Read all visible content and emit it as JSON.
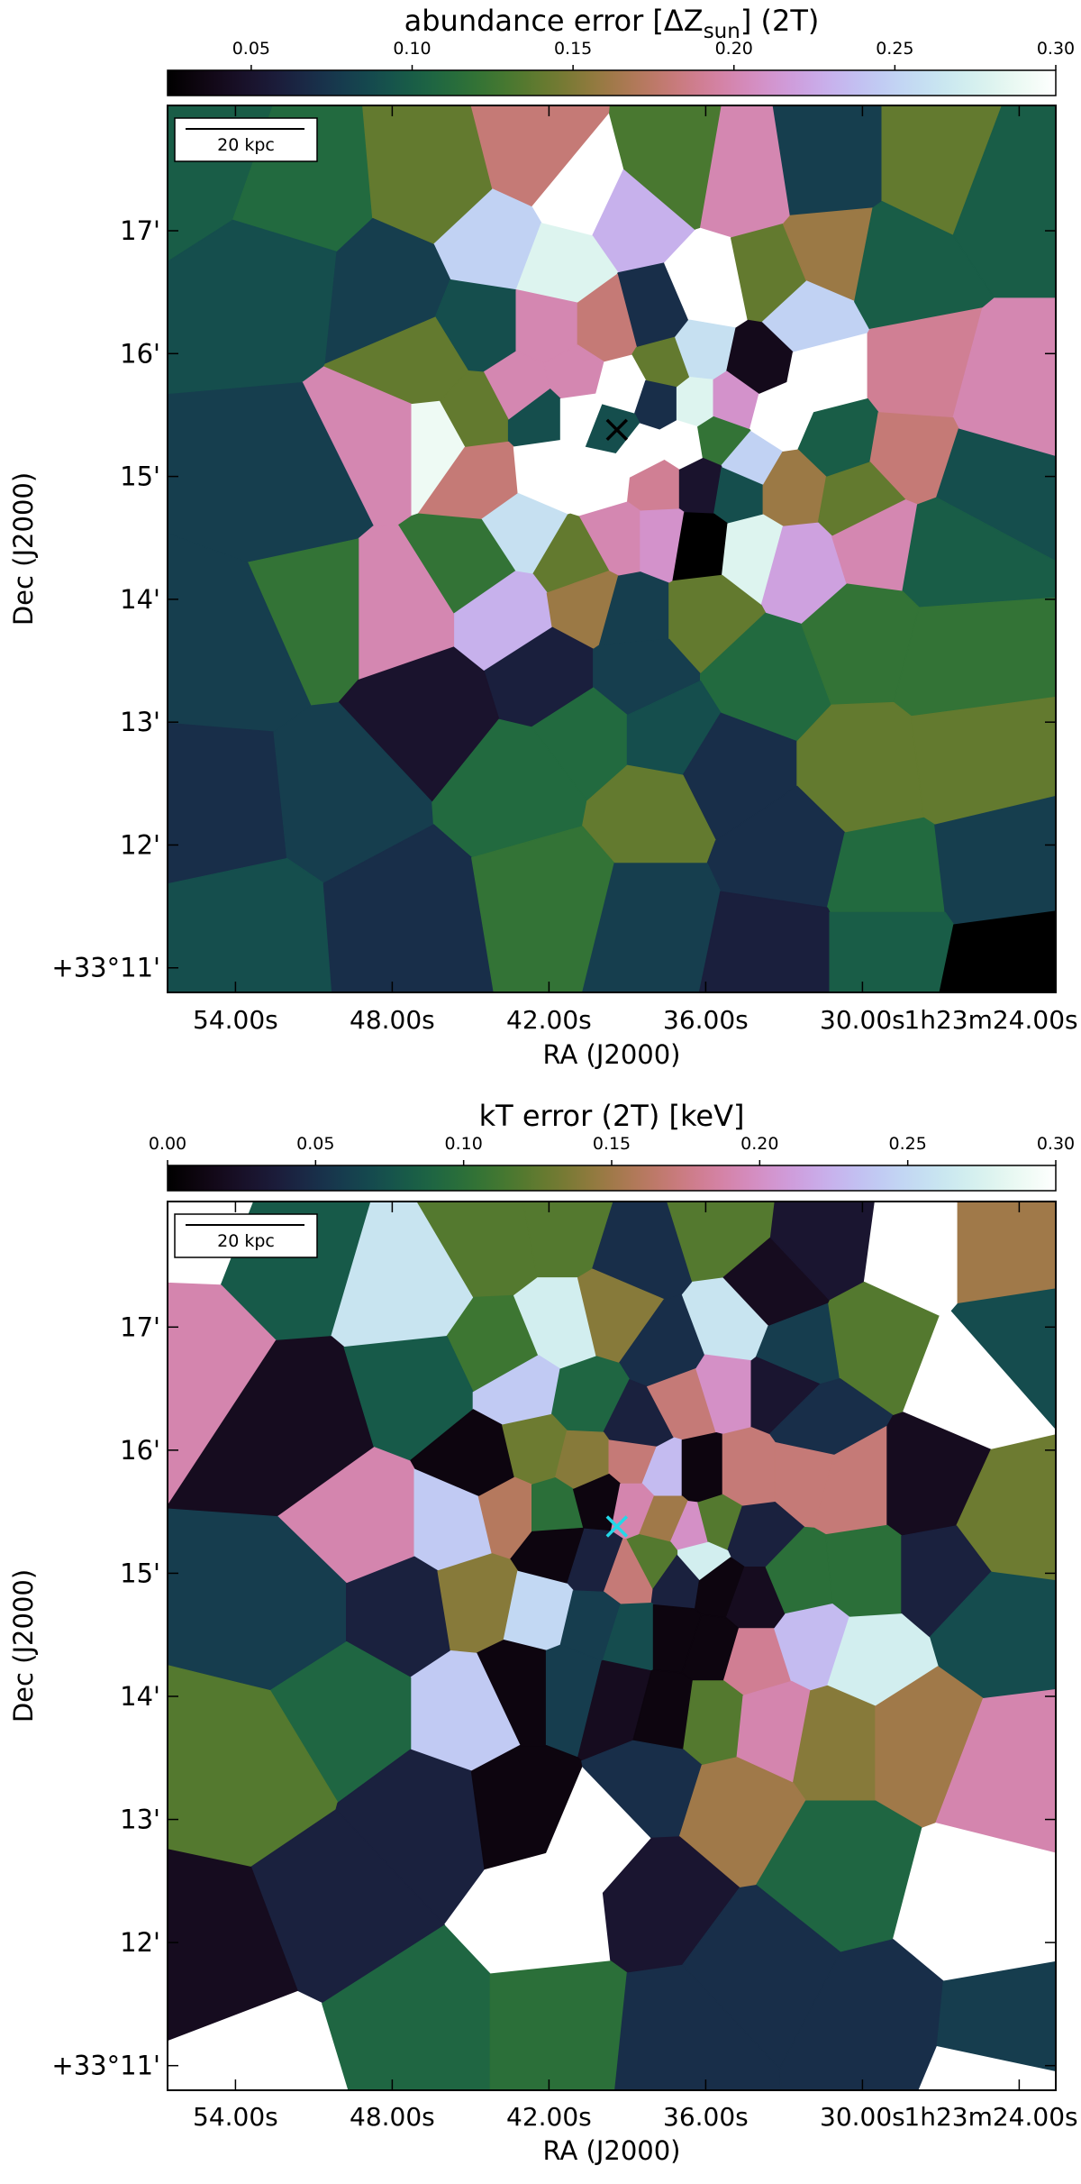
{
  "chart_data": [
    {
      "type": "heatmap",
      "title": "abundance error [ΔZsun] (2T)",
      "title_main": "abundance error [ΔZ",
      "title_sub": "sun",
      "title_tail": "] (2T)",
      "colormap": "cubehelix",
      "colorbar": {
        "ticks": [
          0.05,
          0.1,
          0.15,
          0.2,
          0.25,
          0.3
        ],
        "tick_labels": [
          "0.05",
          "0.10",
          "0.15",
          "0.20",
          "0.25",
          "0.30"
        ],
        "range": [
          0.024,
          0.3
        ]
      },
      "xlabel": "RA (J2000)",
      "ylabel": "Dec (J2000)",
      "x_tick_labels": [
        "54.00s",
        "48.00s",
        "42.00s",
        "36.00s",
        "30.00s",
        "1h23m24.00s"
      ],
      "y_tick_labels": [
        "+33°11'",
        "12'",
        "13'",
        "14'",
        "15'",
        "16'",
        "17'"
      ],
      "scalebar_label": "20 kpc",
      "marker": {
        "symbol": "×",
        "color": "#000000",
        "ra_s": 39.4,
        "dec_arcmin": 15.38
      },
      "bins": [
        {
          "ra": 55.5,
          "dec": 17.6,
          "v": 0.1
        },
        {
          "ra": 51.5,
          "dec": 17.3,
          "v": 0.11
        },
        {
          "ra": 46.2,
          "dec": 17.4,
          "v": 0.14
        },
        {
          "ra": 42.5,
          "dec": 17.6,
          "v": 0.18
        },
        {
          "ra": 40.8,
          "dec": 17.3,
          "v": 0.3
        },
        {
          "ra": 44.0,
          "dec": 16.9,
          "v": 0.25
        },
        {
          "ra": 38.8,
          "dec": 17.1,
          "v": 0.23
        },
        {
          "ra": 37.2,
          "dec": 17.5,
          "v": 0.13
        },
        {
          "ra": 34.5,
          "dec": 17.4,
          "v": 0.2
        },
        {
          "ra": 31.5,
          "dec": 17.5,
          "v": 0.08
        },
        {
          "ra": 27.0,
          "dec": 17.5,
          "v": 0.14
        },
        {
          "ra": 24.5,
          "dec": 17.3,
          "v": 0.1
        },
        {
          "ra": 41.5,
          "dec": 16.7,
          "v": 0.28
        },
        {
          "ra": 38.0,
          "dec": 16.3,
          "v": 0.07
        },
        {
          "ra": 35.8,
          "dec": 16.5,
          "v": 0.3
        },
        {
          "ra": 33.5,
          "dec": 16.6,
          "v": 0.14
        },
        {
          "ra": 31.2,
          "dec": 16.8,
          "v": 0.16
        },
        {
          "ra": 32.2,
          "dec": 16.3,
          "v": 0.25
        },
        {
          "ra": 28.8,
          "dec": 16.7,
          "v": 0.1
        },
        {
          "ra": 52.5,
          "dec": 16.6,
          "v": 0.09
        },
        {
          "ra": 48.0,
          "dec": 16.5,
          "v": 0.08
        },
        {
          "ra": 44.5,
          "dec": 16.2,
          "v": 0.09
        },
        {
          "ra": 42.0,
          "dec": 16.2,
          "v": 0.2
        },
        {
          "ra": 39.8,
          "dec": 16.2,
          "v": 0.18
        },
        {
          "ra": 37.5,
          "dec": 15.9,
          "v": 0.14
        },
        {
          "ra": 36.2,
          "dec": 16.0,
          "v": 0.26
        },
        {
          "ra": 34.0,
          "dec": 15.9,
          "v": 0.04
        },
        {
          "ra": 31.6,
          "dec": 15.8,
          "v": 0.3
        },
        {
          "ra": 28.0,
          "dec": 15.8,
          "v": 0.19
        },
        {
          "ra": 24.5,
          "dec": 15.6,
          "v": 0.2
        },
        {
          "ra": 46.8,
          "dec": 15.9,
          "v": 0.14
        },
        {
          "ra": 43.0,
          "dec": 15.7,
          "v": 0.2
        },
        {
          "ra": 41.0,
          "dec": 15.8,
          "v": 0.2
        },
        {
          "ra": 39.2,
          "dec": 15.7,
          "v": 0.3
        },
        {
          "ra": 37.8,
          "dec": 15.6,
          "v": 0.07
        },
        {
          "ra": 36.4,
          "dec": 15.6,
          "v": 0.28
        },
        {
          "ra": 35.0,
          "dec": 15.6,
          "v": 0.21
        },
        {
          "ra": 33.2,
          "dec": 15.5,
          "v": 0.3
        },
        {
          "ra": 44.8,
          "dec": 15.5,
          "v": 0.14
        },
        {
          "ra": 42.3,
          "dec": 15.5,
          "v": 0.09
        },
        {
          "ra": 40.8,
          "dec": 15.5,
          "v": 0.3
        },
        {
          "ra": 39.6,
          "dec": 15.4,
          "v": 0.09
        },
        {
          "ra": 38.4,
          "dec": 15.2,
          "v": 0.3
        },
        {
          "ra": 36.9,
          "dec": 15.25,
          "v": 0.3
        },
        {
          "ra": 35.5,
          "dec": 15.3,
          "v": 0.12
        },
        {
          "ra": 34.4,
          "dec": 15.1,
          "v": 0.25
        },
        {
          "ra": 31.0,
          "dec": 15.3,
          "v": 0.1
        },
        {
          "ra": 28.2,
          "dec": 15.2,
          "v": 0.18
        },
        {
          "ra": 25.3,
          "dec": 15.0,
          "v": 0.09
        },
        {
          "ra": 48.0,
          "dec": 15.3,
          "v": 0.2
        },
        {
          "ra": 46.5,
          "dec": 15.3,
          "v": 0.29
        },
        {
          "ra": 44.5,
          "dec": 15.0,
          "v": 0.18
        },
        {
          "ra": 42.0,
          "dec": 15.05,
          "v": 0.3
        },
        {
          "ra": 40.0,
          "dec": 15.0,
          "v": 0.3
        },
        {
          "ra": 37.8,
          "dec": 14.95,
          "v": 0.19
        },
        {
          "ra": 36.2,
          "dec": 14.95,
          "v": 0.05
        },
        {
          "ra": 34.8,
          "dec": 14.9,
          "v": 0.09
        },
        {
          "ra": 32.8,
          "dec": 14.9,
          "v": 0.16
        },
        {
          "ra": 30.2,
          "dec": 14.8,
          "v": 0.14
        },
        {
          "ra": 51.8,
          "dec": 14.9,
          "v": 0.08
        },
        {
          "ra": 43.0,
          "dec": 14.55,
          "v": 0.26
        },
        {
          "ra": 39.3,
          "dec": 14.5,
          "v": 0.2
        },
        {
          "ra": 37.7,
          "dec": 14.5,
          "v": 0.21
        },
        {
          "ra": 36.3,
          "dec": 14.45,
          "v": 0.02
        },
        {
          "ra": 34.2,
          "dec": 14.4,
          "v": 0.28
        },
        {
          "ra": 32.5,
          "dec": 14.3,
          "v": 0.22
        },
        {
          "ra": 29.5,
          "dec": 14.5,
          "v": 0.2
        },
        {
          "ra": 26.8,
          "dec": 14.4,
          "v": 0.1
        },
        {
          "ra": 44.8,
          "dec": 14.3,
          "v": 0.12
        },
        {
          "ra": 41.0,
          "dec": 14.3,
          "v": 0.14
        },
        {
          "ra": 43.5,
          "dec": 13.9,
          "v": 0.23
        },
        {
          "ra": 40.5,
          "dec": 14.0,
          "v": 0.16
        },
        {
          "ra": 38.8,
          "dec": 13.9,
          "v": 0.08
        },
        {
          "ra": 36.0,
          "dec": 13.9,
          "v": 0.14
        },
        {
          "ra": 47.8,
          "dec": 13.9,
          "v": 0.2
        },
        {
          "ra": 50.8,
          "dec": 13.9,
          "v": 0.12
        },
        {
          "ra": 54.0,
          "dec": 13.6,
          "v": 0.08
        },
        {
          "ra": 42.0,
          "dec": 13.4,
          "v": 0.06
        },
        {
          "ra": 38.6,
          "dec": 13.4,
          "v": 0.08
        },
        {
          "ra": 33.8,
          "dec": 13.4,
          "v": 0.11
        },
        {
          "ra": 30.0,
          "dec": 13.7,
          "v": 0.12
        },
        {
          "ra": 26.5,
          "dec": 13.5,
          "v": 0.12
        },
        {
          "ra": 46.5,
          "dec": 13.1,
          "v": 0.05
        },
        {
          "ra": 40.5,
          "dec": 12.9,
          "v": 0.11
        },
        {
          "ra": 37.5,
          "dec": 12.9,
          "v": 0.09
        },
        {
          "ra": 35.2,
          "dec": 12.6,
          "v": 0.07
        },
        {
          "ra": 29.8,
          "dec": 12.6,
          "v": 0.14
        },
        {
          "ra": 26.0,
          "dec": 12.7,
          "v": 0.14
        },
        {
          "ra": 54.5,
          "dec": 12.3,
          "v": 0.07
        },
        {
          "ra": 50.0,
          "dec": 12.4,
          "v": 0.08
        },
        {
          "ra": 43.0,
          "dec": 12.5,
          "v": 0.11
        },
        {
          "ra": 38.0,
          "dec": 12.3,
          "v": 0.14
        },
        {
          "ra": 33.0,
          "dec": 11.9,
          "v": 0.07
        },
        {
          "ra": 29.0,
          "dec": 11.7,
          "v": 0.11
        },
        {
          "ra": 25.0,
          "dec": 11.8,
          "v": 0.08
        },
        {
          "ra": 53.5,
          "dec": 11.3,
          "v": 0.09
        },
        {
          "ra": 47.5,
          "dec": 11.4,
          "v": 0.07
        },
        {
          "ra": 41.8,
          "dec": 11.6,
          "v": 0.12
        },
        {
          "ra": 38.0,
          "dec": 11.4,
          "v": 0.08
        },
        {
          "ra": 33.5,
          "dec": 11.2,
          "v": 0.06
        },
        {
          "ra": 29.0,
          "dec": 11.2,
          "v": 0.1
        },
        {
          "ra": 24.5,
          "dec": 11.0,
          "v": 0.02
        }
      ]
    },
    {
      "type": "heatmap",
      "title": "kT error (2T) [keV]",
      "colormap": "cubehelix",
      "colorbar": {
        "ticks": [
          0.0,
          0.05,
          0.1,
          0.15,
          0.2,
          0.25,
          0.3
        ],
        "tick_labels": [
          "0.00",
          "0.05",
          "0.10",
          "0.15",
          "0.20",
          "0.25",
          "0.30"
        ],
        "range": [
          0.0,
          0.3
        ]
      },
      "xlabel": "RA (J2000)",
      "ylabel": "Dec (J2000)",
      "x_tick_labels": [
        "54.00s",
        "48.00s",
        "42.00s",
        "36.00s",
        "30.00s",
        "1h23m24.00s"
      ],
      "y_tick_labels": [
        "+33°11'",
        "12'",
        "13'",
        "14'",
        "15'",
        "16'",
        "17'"
      ],
      "scalebar_label": "20 kpc",
      "marker": {
        "symbol": "×",
        "color": "#22d8e8",
        "ra_s": 39.4,
        "dec_arcmin": 15.38
      },
      "bins": [
        {
          "ra": 55.6,
          "dec": 17.9,
          "v": 0.3
        },
        {
          "ra": 52.0,
          "dec": 17.6,
          "v": 0.08
        },
        {
          "ra": 47.2,
          "dec": 17.3,
          "v": 0.26
        },
        {
          "ra": 44.0,
          "dec": 17.7,
          "v": 0.12
        },
        {
          "ra": 41.5,
          "dec": 17.8,
          "v": 0.12
        },
        {
          "ra": 38.5,
          "dec": 17.6,
          "v": 0.05
        },
        {
          "ra": 35.5,
          "dec": 17.8,
          "v": 0.12
        },
        {
          "ra": 33.5,
          "dec": 17.3,
          "v": 0.02
        },
        {
          "ra": 31.5,
          "dec": 17.7,
          "v": 0.03
        },
        {
          "ra": 28.0,
          "dec": 17.6,
          "v": 0.3
        },
        {
          "ra": 24.7,
          "dec": 17.6,
          "v": 0.15
        },
        {
          "ra": 55.8,
          "dec": 16.8,
          "v": 0.19
        },
        {
          "ra": 43.8,
          "dec": 16.8,
          "v": 0.11
        },
        {
          "ra": 41.5,
          "dec": 17.0,
          "v": 0.27
        },
        {
          "ra": 39.5,
          "dec": 17.1,
          "v": 0.14
        },
        {
          "ra": 37.5,
          "dec": 16.8,
          "v": 0.05
        },
        {
          "ra": 35.0,
          "dec": 17.0,
          "v": 0.26
        },
        {
          "ra": 32.6,
          "dec": 16.8,
          "v": 0.06
        },
        {
          "ra": 29.5,
          "dec": 16.9,
          "v": 0.12
        },
        {
          "ra": 25.8,
          "dec": 16.6,
          "v": 0.3
        },
        {
          "ra": 24.2,
          "dec": 16.9,
          "v": 0.07
        },
        {
          "ra": 51.5,
          "dec": 16.2,
          "v": 0.02
        },
        {
          "ra": 46.8,
          "dec": 16.5,
          "v": 0.08
        },
        {
          "ra": 43.0,
          "dec": 16.5,
          "v": 0.24
        },
        {
          "ra": 40.5,
          "dec": 16.4,
          "v": 0.09
        },
        {
          "ra": 38.6,
          "dec": 16.2,
          "v": 0.04
        },
        {
          "ra": 36.8,
          "dec": 16.4,
          "v": 0.17
        },
        {
          "ra": 35.3,
          "dec": 16.5,
          "v": 0.2
        },
        {
          "ra": 33.2,
          "dec": 16.5,
          "v": 0.03
        },
        {
          "ra": 31.8,
          "dec": 16.2,
          "v": 0.05
        },
        {
          "ra": 44.5,
          "dec": 15.9,
          "v": 0.01
        },
        {
          "ra": 42.5,
          "dec": 16.0,
          "v": 0.13
        },
        {
          "ra": 40.6,
          "dec": 15.9,
          "v": 0.14
        },
        {
          "ra": 38.8,
          "dec": 15.9,
          "v": 0.17
        },
        {
          "ra": 37.6,
          "dec": 15.8,
          "v": 0.23
        },
        {
          "ra": 36.2,
          "dec": 15.8,
          "v": 0.01
        },
        {
          "ra": 34.5,
          "dec": 15.8,
          "v": 0.17
        },
        {
          "ra": 32.2,
          "dec": 15.8,
          "v": 0.17
        },
        {
          "ra": 30.5,
          "dec": 15.7,
          "v": 0.17
        },
        {
          "ra": 27.6,
          "dec": 15.7,
          "v": 0.02
        },
        {
          "ra": 24.5,
          "dec": 15.4,
          "v": 0.13
        },
        {
          "ra": 48.8,
          "dec": 15.4,
          "v": 0.19
        },
        {
          "ra": 45.5,
          "dec": 15.4,
          "v": 0.24
        },
        {
          "ra": 43.5,
          "dec": 15.5,
          "v": 0.16
        },
        {
          "ra": 41.8,
          "dec": 15.5,
          "v": 0.1
        },
        {
          "ra": 40.0,
          "dec": 15.6,
          "v": 0.01
        },
        {
          "ra": 38.8,
          "dec": 15.55,
          "v": 0.19
        },
        {
          "ra": 37.6,
          "dec": 15.45,
          "v": 0.15
        },
        {
          "ra": 36.5,
          "dec": 15.35,
          "v": 0.2
        },
        {
          "ra": 35.6,
          "dec": 15.4,
          "v": 0.12
        },
        {
          "ra": 34.2,
          "dec": 15.3,
          "v": 0.04
        },
        {
          "ra": 36.2,
          "dec": 15.1,
          "v": 0.27
        },
        {
          "ra": 41.7,
          "dec": 15.2,
          "v": 0.01
        },
        {
          "ra": 40.2,
          "dec": 15.1,
          "v": 0.04
        },
        {
          "ra": 38.9,
          "dec": 15.0,
          "v": 0.17
        },
        {
          "ra": 38.0,
          "dec": 15.1,
          "v": 0.12
        },
        {
          "ra": 37.0,
          "dec": 14.95,
          "v": 0.04
        },
        {
          "ra": 35.5,
          "dec": 14.9,
          "v": 0.01
        },
        {
          "ra": 34.2,
          "dec": 14.8,
          "v": 0.02
        },
        {
          "ra": 32.5,
          "dec": 14.95,
          "v": 0.1
        },
        {
          "ra": 30.0,
          "dec": 15.0,
          "v": 0.1
        },
        {
          "ra": 27.0,
          "dec": 15.0,
          "v": 0.04
        },
        {
          "ra": 25.0,
          "dec": 14.6,
          "v": 0.07
        },
        {
          "ra": 52.0,
          "dec": 14.7,
          "v": 0.06
        },
        {
          "ra": 47.5,
          "dec": 14.7,
          "v": 0.04
        },
        {
          "ra": 44.6,
          "dec": 14.8,
          "v": 0.14
        },
        {
          "ra": 42.3,
          "dec": 14.7,
          "v": 0.25
        },
        {
          "ra": 40.3,
          "dec": 14.6,
          "v": 0.06
        },
        {
          "ra": 38.8,
          "dec": 14.5,
          "v": 0.07
        },
        {
          "ra": 37.2,
          "dec": 14.5,
          "v": 0.01
        },
        {
          "ra": 35.8,
          "dec": 14.4,
          "v": 0.01
        },
        {
          "ra": 34.2,
          "dec": 14.3,
          "v": 0.18
        },
        {
          "ra": 32.0,
          "dec": 14.45,
          "v": 0.23
        },
        {
          "ra": 29.8,
          "dec": 14.3,
          "v": 0.27
        },
        {
          "ra": 43.0,
          "dec": 14.1,
          "v": 0.01
        },
        {
          "ra": 41.2,
          "dec": 14.1,
          "v": 0.06
        },
        {
          "ra": 39.3,
          "dec": 14.0,
          "v": 0.02
        },
        {
          "ra": 37.5,
          "dec": 13.9,
          "v": 0.01
        },
        {
          "ra": 35.8,
          "dec": 13.85,
          "v": 0.12
        },
        {
          "ra": 33.5,
          "dec": 13.8,
          "v": 0.19
        },
        {
          "ra": 31.0,
          "dec": 13.7,
          "v": 0.14
        },
        {
          "ra": 28.0,
          "dec": 13.7,
          "v": 0.15
        },
        {
          "ra": 24.3,
          "dec": 13.4,
          "v": 0.19
        },
        {
          "ra": 45.0,
          "dec": 13.9,
          "v": 0.24
        },
        {
          "ra": 49.6,
          "dec": 13.9,
          "v": 0.09
        },
        {
          "ra": 53.5,
          "dec": 13.4,
          "v": 0.12
        },
        {
          "ra": 46.5,
          "dec": 13.0,
          "v": 0.04
        },
        {
          "ra": 43.0,
          "dec": 13.1,
          "v": 0.01
        },
        {
          "ra": 40.2,
          "dec": 12.85,
          "v": 0.3
        },
        {
          "ra": 38.0,
          "dec": 13.3,
          "v": 0.05
        },
        {
          "ra": 35.0,
          "dec": 13.1,
          "v": 0.15
        },
        {
          "ra": 31.0,
          "dec": 12.6,
          "v": 0.09
        },
        {
          "ra": 25.6,
          "dec": 12.3,
          "v": 0.3
        },
        {
          "ra": 42.0,
          "dec": 12.3,
          "v": 0.3
        },
        {
          "ra": 50.0,
          "dec": 12.3,
          "v": 0.04
        },
        {
          "ra": 37.8,
          "dec": 12.4,
          "v": 0.03
        },
        {
          "ra": 34.0,
          "dec": 11.8,
          "v": 0.05
        },
        {
          "ra": 55.0,
          "dec": 11.9,
          "v": 0.02
        },
        {
          "ra": 53.2,
          "dec": 10.9,
          "v": 0.3
        },
        {
          "ra": 47.0,
          "dec": 11.3,
          "v": 0.09
        },
        {
          "ra": 41.5,
          "dec": 11.3,
          "v": 0.1
        },
        {
          "ra": 37.0,
          "dec": 11.2,
          "v": 0.05
        },
        {
          "ra": 29.5,
          "dec": 11.3,
          "v": 0.05
        },
        {
          "ra": 24.7,
          "dec": 11.2,
          "v": 0.06
        },
        {
          "ra": 25.0,
          "dec": 10.9,
          "v": 0.3
        }
      ]
    }
  ]
}
